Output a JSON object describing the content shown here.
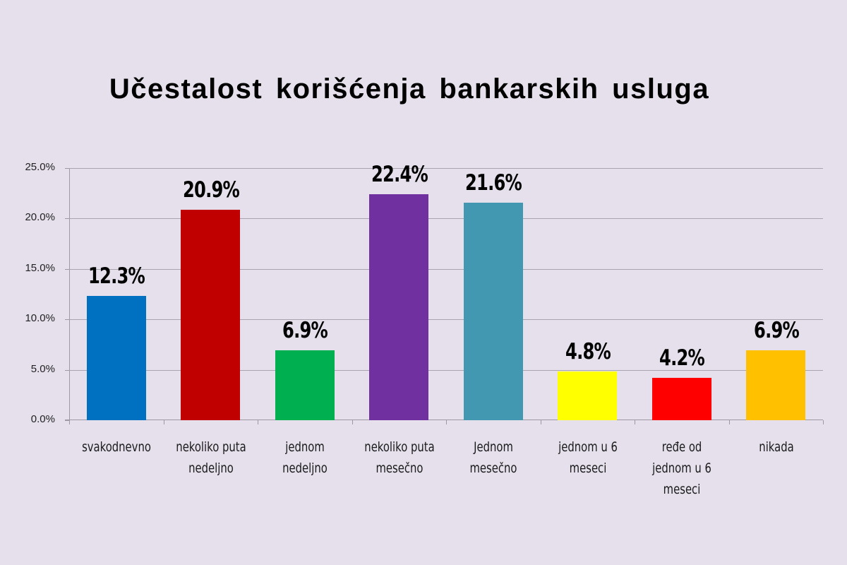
{
  "title": "Učestalost korišćenja bankarskih usluga",
  "y_axis": {
    "ticks": [
      "0.0%",
      "5.0%",
      "10.0%",
      "15.0%",
      "20.0%",
      "25.0%"
    ]
  },
  "bars": [
    {
      "category": "svakodnevno",
      "value": 12.3,
      "label": "12.3%",
      "color": "#0070c0"
    },
    {
      "category": "nekoliko puta\nnedeljno",
      "value": 20.9,
      "label": "20.9%",
      "color": "#c00000"
    },
    {
      "category": "jednom\nnedeljno",
      "value": 6.9,
      "label": "6.9%",
      "color": "#00b050"
    },
    {
      "category": "nekoliko puta\nmesečno",
      "value": 22.4,
      "label": "22.4%",
      "color": "#7030a0"
    },
    {
      "category": "Jednom\nmesečno",
      "value": 21.6,
      "label": "21.6%",
      "color": "#4298b0"
    },
    {
      "category": "jednom u 6\nmeseci",
      "value": 4.8,
      "label": "4.8%",
      "color": "#ffff00"
    },
    {
      "category": "ređe od\njednom u 6\nmeseci",
      "value": 4.2,
      "label": "4.2%",
      "color": "#ff0000"
    },
    {
      "category": "nikada",
      "value": 6.9,
      "label": "6.9%",
      "color": "#ffc000"
    }
  ],
  "chart_data": {
    "type": "bar",
    "title": "Učestalost korišćenja bankarskih usluga",
    "categories": [
      "svakodnevno",
      "nekoliko puta nedeljno",
      "jednom nedeljno",
      "nekoliko puta mesečno",
      "Jednom mesečno",
      "jednom u 6 meseci",
      "ređe od jednom u 6 meseci",
      "nikada"
    ],
    "values": [
      12.3,
      20.9,
      6.9,
      22.4,
      21.6,
      4.8,
      4.2,
      6.9
    ],
    "data_labels": [
      "12.3%",
      "20.9%",
      "6.9%",
      "22.4%",
      "21.6%",
      "4.8%",
      "4.2%",
      "6.9%"
    ],
    "colors": [
      "#0070c0",
      "#c00000",
      "#00b050",
      "#7030a0",
      "#4298b0",
      "#ffff00",
      "#ff0000",
      "#ffc000"
    ],
    "xlabel": "",
    "ylabel": "",
    "ylim": [
      0,
      25
    ],
    "yticks": [
      "0.0%",
      "5.0%",
      "10.0%",
      "15.0%",
      "20.0%",
      "25.0%"
    ],
    "grid": true,
    "legend": "none"
  }
}
